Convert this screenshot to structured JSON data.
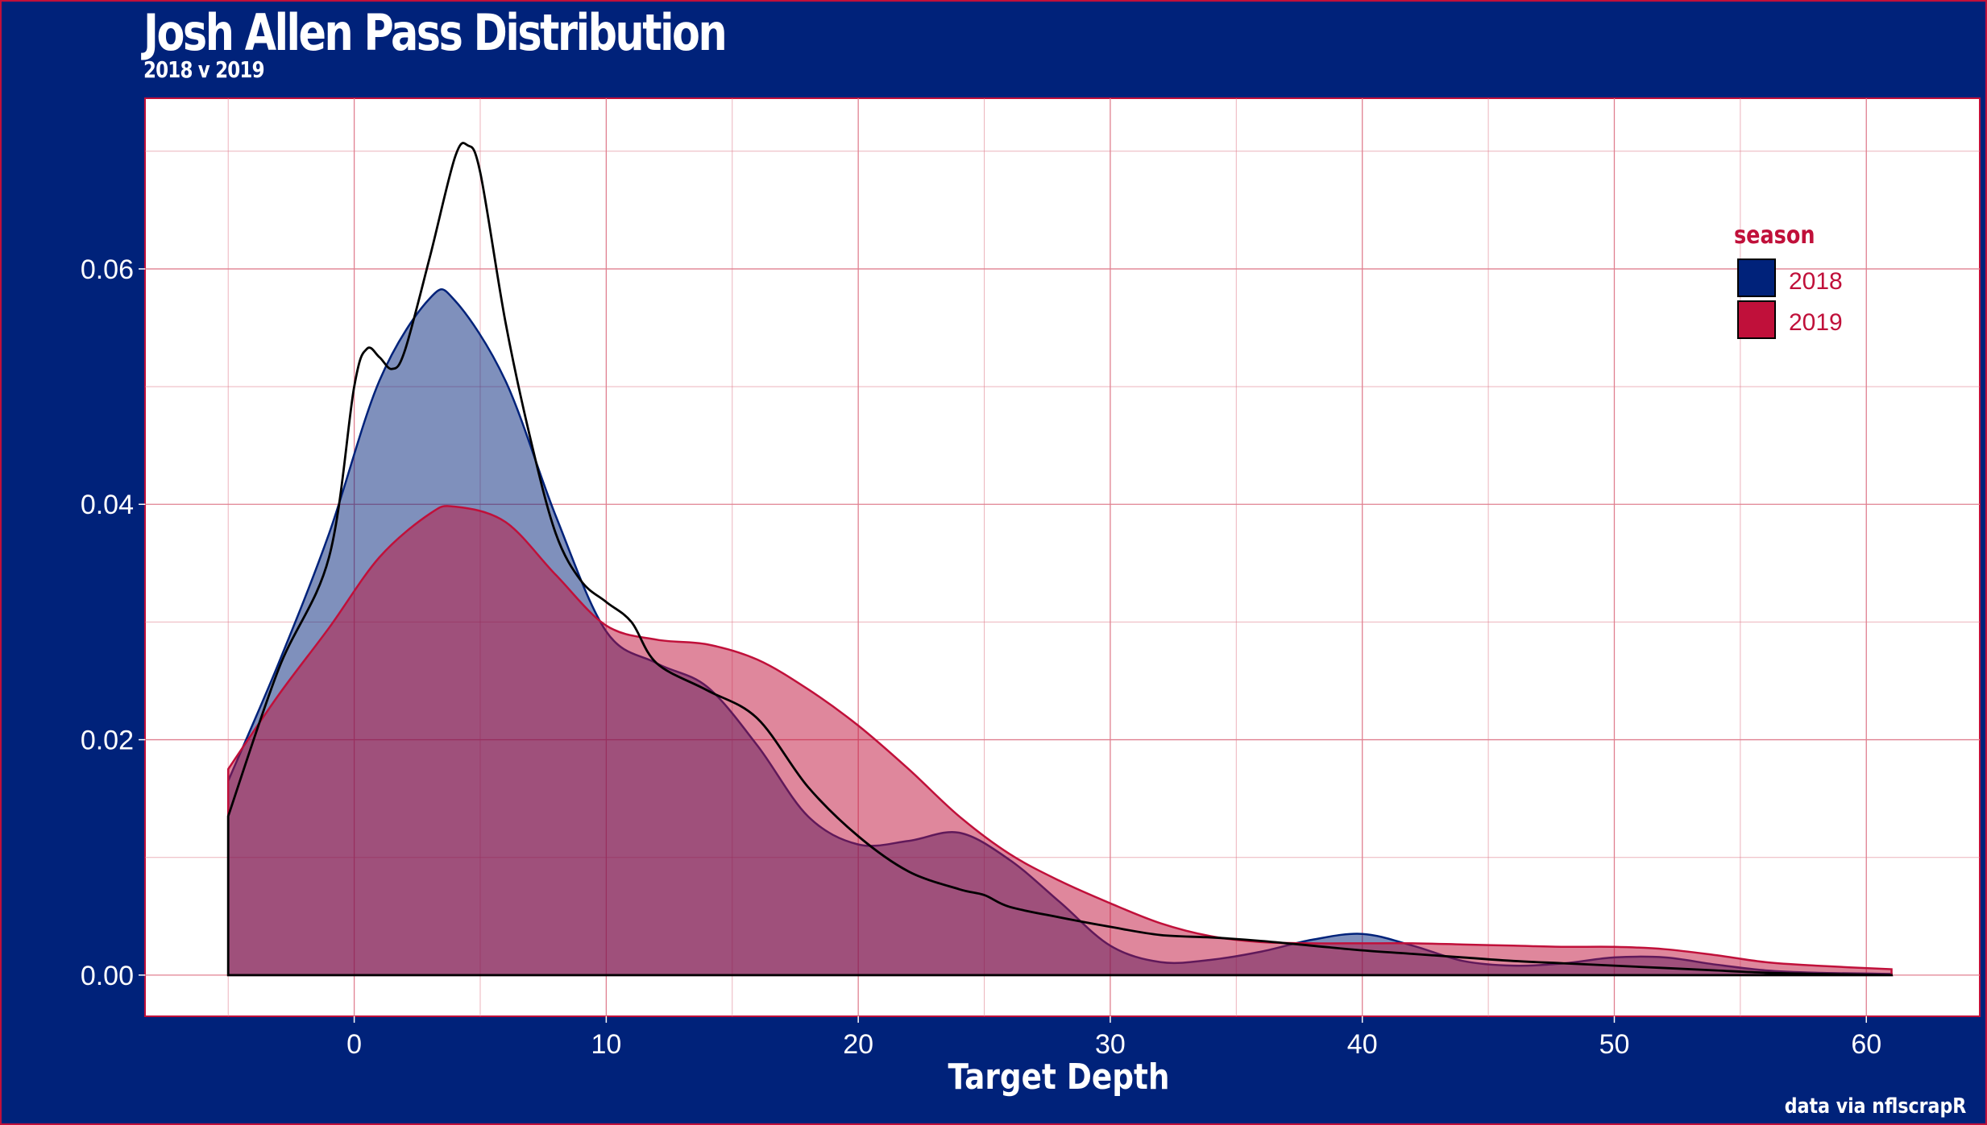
{
  "header": {
    "title": "Josh Allen Pass Distribution",
    "subtitle": "2018 v 2019"
  },
  "caption": "data via nflscrapR",
  "colors": {
    "background": "#00227a",
    "panel": "#ffffff",
    "grid": "#e08090",
    "accent_red": "#c0103a",
    "series_2018": "#00227a",
    "series_2019": "#c0103a"
  },
  "chart_data": {
    "type": "area",
    "title": "Josh Allen Pass Distribution",
    "subtitle": "2018 v 2019",
    "xlabel": "Target Depth",
    "ylabel": "",
    "xlim": [
      -8.3,
      64.5
    ],
    "ylim": [
      -0.0035,
      0.0745
    ],
    "x_ticks": [
      0,
      10,
      20,
      30,
      40,
      50,
      60
    ],
    "y_ticks": [
      0.0,
      0.02,
      0.04,
      0.06
    ],
    "x_tick_labels": [
      "0",
      "10",
      "20",
      "30",
      "40",
      "50",
      "60"
    ],
    "y_tick_labels": [
      "0.00",
      "0.02",
      "0.04",
      "0.06"
    ],
    "grid": true,
    "legend": {
      "title": "season",
      "position": "top-right",
      "entries": [
        {
          "label": "2018",
          "color": "#00227a"
        },
        {
          "label": "2019",
          "color": "#c0103a"
        }
      ]
    },
    "series": [
      {
        "name": "2018",
        "fill": "#00227a",
        "fill_opacity": 0.5,
        "stroke": "#00227a",
        "x": [
          -5,
          -3,
          -1,
          1,
          3,
          4,
          6,
          8,
          10,
          12,
          14,
          16,
          18,
          20,
          22,
          24,
          26,
          28,
          30,
          32,
          34,
          36,
          38,
          40,
          42,
          44,
          46,
          48,
          50,
          52,
          54,
          56,
          58,
          61
        ],
        "y": [
          0.0165,
          0.0265,
          0.0375,
          0.0505,
          0.0575,
          0.0573,
          0.0505,
          0.039,
          0.0292,
          0.0265,
          0.0245,
          0.0195,
          0.0135,
          0.0111,
          0.0114,
          0.0121,
          0.0098,
          0.0062,
          0.0025,
          0.0011,
          0.0013,
          0.002,
          0.003,
          0.0035,
          0.0025,
          0.0012,
          0.0008,
          0.001,
          0.0015,
          0.0015,
          0.0009,
          0.0004,
          0.0002,
          0.0001
        ]
      },
      {
        "name": "2019",
        "fill": "#c0103a",
        "fill_opacity": 0.5,
        "stroke": "#c0103a",
        "x": [
          -5,
          -3,
          -1,
          1,
          3,
          4,
          6,
          8,
          10,
          12,
          14,
          16,
          18,
          20,
          22,
          24,
          26,
          28,
          30,
          32,
          34,
          36,
          38,
          40,
          42,
          44,
          46,
          48,
          50,
          52,
          54,
          56,
          58,
          61
        ],
        "y": [
          0.0175,
          0.0238,
          0.0295,
          0.0355,
          0.0392,
          0.0398,
          0.0385,
          0.034,
          0.0297,
          0.0285,
          0.0281,
          0.0268,
          0.0243,
          0.0212,
          0.0175,
          0.0135,
          0.0103,
          0.008,
          0.0061,
          0.0044,
          0.0033,
          0.0028,
          0.0027,
          0.0027,
          0.0027,
          0.0026,
          0.0025,
          0.0024,
          0.0024,
          0.0022,
          0.0017,
          0.0011,
          0.0008,
          0.0005
        ]
      },
      {
        "name": "",
        "fill": "none",
        "stroke": "#000000",
        "x": [
          -5,
          -3,
          -1,
          0,
          0.5,
          1,
          1.5,
          2,
          3,
          4,
          4.5,
          5,
          6,
          7,
          8,
          9,
          10,
          11,
          12,
          14,
          16,
          18,
          20,
          22,
          24,
          25,
          26,
          28,
          30,
          32,
          34,
          36,
          38,
          40,
          42,
          44,
          46,
          48,
          50,
          52,
          54,
          56,
          58,
          61
        ],
        "y": [
          0.0135,
          0.026,
          0.0355,
          0.05,
          0.0532,
          0.0525,
          0.0515,
          0.053,
          0.061,
          0.0695,
          0.0705,
          0.0682,
          0.0555,
          0.0455,
          0.0375,
          0.0335,
          0.0317,
          0.03,
          0.0265,
          0.0242,
          0.0218,
          0.016,
          0.0118,
          0.0088,
          0.0073,
          0.0068,
          0.0058,
          0.0049,
          0.0041,
          0.0034,
          0.0032,
          0.0029,
          0.0025,
          0.0021,
          0.0018,
          0.0015,
          0.0012,
          0.001,
          0.0008,
          0.0006,
          0.0004,
          0.0002,
          0.0001,
          0.0
        ]
      }
    ]
  }
}
